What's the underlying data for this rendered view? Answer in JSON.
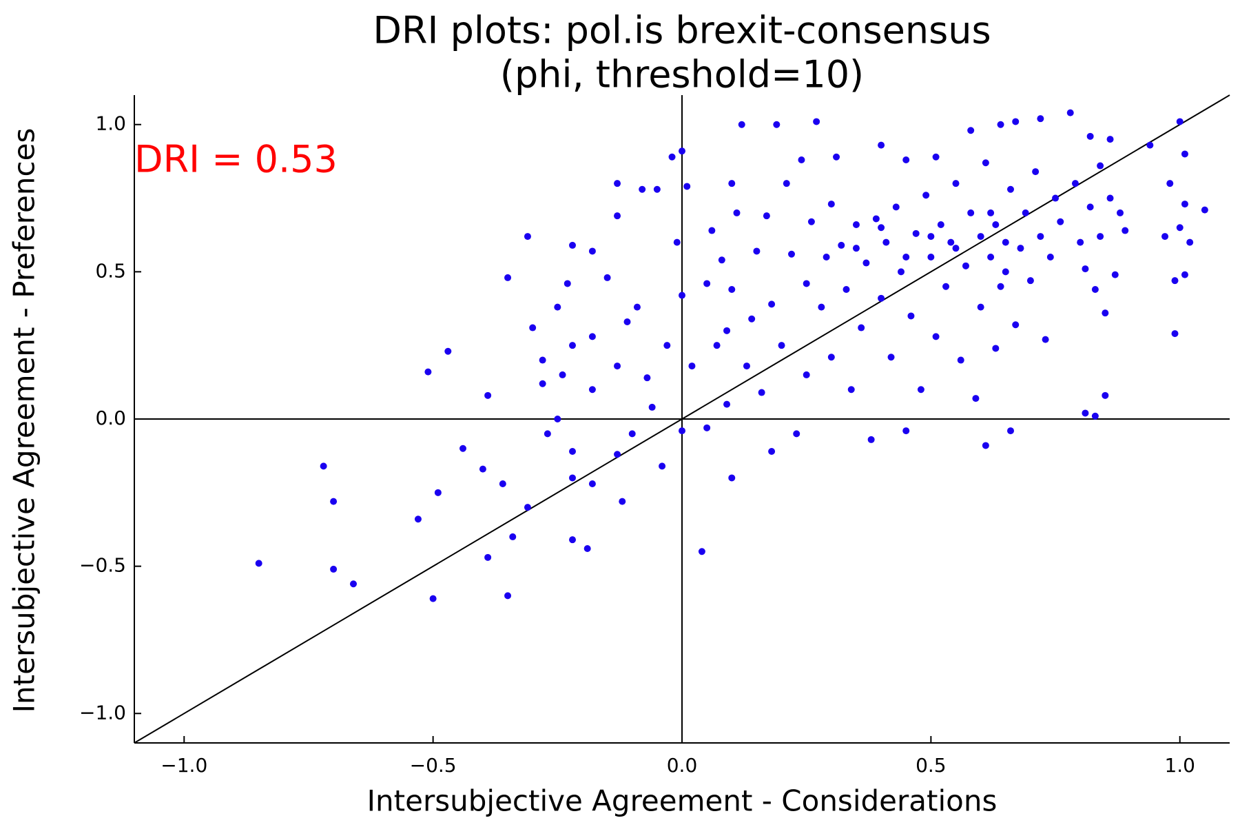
{
  "chart_data": {
    "type": "scatter",
    "title": [
      "DRI plots: pol.is brexit-consensus",
      "(phi, threshold=10)"
    ],
    "x_label": "Intersubjective Agreement - Considerations",
    "y_label": "Intersubjective Agreement - Preferences",
    "annotation": "DRI = 0.53",
    "annotation_color": "#ff0000",
    "color": "#1a00f0",
    "hline": 0,
    "vline": 0,
    "diagonal": true,
    "xlim": [
      -1.1,
      1.1
    ],
    "ylim": [
      -1.1,
      1.1
    ],
    "xticks": [
      {
        "value": -1,
        "label": "−1.0"
      },
      {
        "value": -0.5,
        "label": "−0.5"
      },
      {
        "value": 0,
        "label": "0.0"
      },
      {
        "value": 0.5,
        "label": "0.5"
      },
      {
        "value": 1,
        "label": "1.0"
      }
    ],
    "yticks": [
      {
        "value": -1,
        "label": "−1.0"
      },
      {
        "value": -0.5,
        "label": "−0.5"
      },
      {
        "value": 0,
        "label": "0.0"
      },
      {
        "value": 0.5,
        "label": "0.5"
      },
      {
        "value": 1,
        "label": "1.0"
      }
    ],
    "x": [
      -0.85,
      -0.72,
      -0.7,
      -0.7,
      -0.66,
      -0.53,
      -0.51,
      -0.5,
      -0.47,
      -0.49,
      -0.44,
      -0.4,
      -0.39,
      -0.39,
      -0.36,
      -0.35,
      -0.35,
      -0.34,
      -0.31,
      -0.31,
      -0.3,
      -0.28,
      -0.28,
      -0.27,
      -0.25,
      -0.25,
      -0.24,
      -0.23,
      -0.22,
      -0.22,
      -0.22,
      -0.22,
      -0.22,
      -0.19,
      -0.18,
      -0.18,
      -0.18,
      -0.18,
      -0.15,
      -0.13,
      -0.13,
      -0.13,
      -0.13,
      -0.12,
      -0.11,
      -0.1,
      -0.09,
      -0.08,
      -0.07,
      -0.06,
      -0.05,
      -0.04,
      -0.03,
      -0.02,
      -0.01,
      0.0,
      0.0,
      0.0,
      0.01,
      0.02,
      0.04,
      0.05,
      0.05,
      0.06,
      0.07,
      0.08,
      0.09,
      0.09,
      0.1,
      0.1,
      0.1,
      0.11,
      0.12,
      0.13,
      0.14,
      0.15,
      0.16,
      0.17,
      0.18,
      0.18,
      0.19,
      0.2,
      0.21,
      0.22,
      0.23,
      0.24,
      0.25,
      0.25,
      0.26,
      0.27,
      0.28,
      0.29,
      0.3,
      0.3,
      0.31,
      0.32,
      0.33,
      0.34,
      0.35,
      0.36,
      0.37,
      0.38,
      0.39,
      0.4,
      0.4,
      0.41,
      0.42,
      0.43,
      0.44,
      0.45,
      0.45,
      0.46,
      0.47,
      0.48,
      0.49,
      0.5,
      0.51,
      0.51,
      0.52,
      0.53,
      0.54,
      0.55,
      0.56,
      0.57,
      0.58,
      0.58,
      0.59,
      0.6,
      0.6,
      0.61,
      0.61,
      0.62,
      0.63,
      0.63,
      0.64,
      0.64,
      0.65,
      0.66,
      0.66,
      0.67,
      0.67,
      0.68,
      0.69,
      0.7,
      0.71,
      0.72,
      0.72,
      0.73,
      0.74,
      0.75,
      0.76,
      0.78,
      0.79,
      0.8,
      0.81,
      0.81,
      0.82,
      0.82,
      0.83,
      0.83,
      0.84,
      0.84,
      0.85,
      0.85,
      0.86,
      0.86,
      0.87,
      0.88,
      0.89,
      0.94,
      0.97,
      0.98,
      0.99,
      0.99,
      1.0,
      1.0,
      1.01,
      1.01,
      1.01,
      1.02,
      1.05,
      0.5,
      0.55,
      0.62,
      0.35,
      0.4,
      0.65,
      0.45
    ],
    "y": [
      -0.49,
      -0.16,
      -0.28,
      -0.51,
      -0.56,
      -0.34,
      0.16,
      -0.61,
      0.23,
      -0.25,
      -0.1,
      -0.17,
      0.08,
      -0.47,
      -0.22,
      0.48,
      -0.6,
      -0.4,
      -0.3,
      0.62,
      0.31,
      0.12,
      0.2,
      -0.05,
      0.0,
      0.38,
      0.15,
      0.46,
      -0.11,
      -0.2,
      0.25,
      -0.41,
      0.59,
      -0.44,
      0.1,
      -0.22,
      0.28,
      0.57,
      0.48,
      0.8,
      0.69,
      0.18,
      -0.12,
      -0.28,
      0.33,
      -0.05,
      0.38,
      0.78,
      0.14,
      0.04,
      0.78,
      -0.16,
      0.25,
      0.89,
      0.6,
      0.91,
      0.42,
      -0.04,
      0.79,
      0.18,
      -0.45,
      -0.03,
      0.46,
      0.64,
      0.25,
      0.54,
      0.05,
      0.3,
      -0.2,
      0.8,
      0.44,
      0.7,
      1.0,
      0.18,
      0.34,
      0.57,
      0.09,
      0.69,
      -0.11,
      0.39,
      1.0,
      0.25,
      0.8,
      0.56,
      -0.05,
      0.88,
      0.46,
      0.15,
      0.67,
      1.01,
      0.38,
      0.55,
      0.73,
      0.21,
      0.89,
      0.59,
      0.44,
      0.1,
      0.66,
      0.31,
      0.53,
      -0.07,
      0.68,
      0.93,
      0.41,
      0.6,
      0.21,
      0.72,
      0.5,
      0.88,
      -0.04,
      0.35,
      0.63,
      0.1,
      0.76,
      0.55,
      0.89,
      0.28,
      0.66,
      0.45,
      0.6,
      0.8,
      0.2,
      0.52,
      0.98,
      0.7,
      0.07,
      0.62,
      0.38,
      0.87,
      -0.09,
      0.55,
      0.66,
      0.24,
      1.0,
      0.45,
      0.6,
      0.78,
      -0.04,
      1.01,
      0.32,
      0.58,
      0.7,
      0.47,
      0.84,
      1.02,
      0.62,
      0.27,
      0.55,
      0.75,
      0.67,
      1.04,
      0.8,
      0.6,
      0.02,
      0.51,
      0.72,
      0.96,
      0.44,
      0.01,
      0.86,
      0.62,
      0.08,
      0.36,
      0.75,
      0.95,
      0.49,
      0.7,
      0.64,
      0.93,
      0.62,
      0.8,
      0.29,
      0.47,
      1.01,
      0.65,
      0.9,
      0.73,
      0.49,
      0.6,
      0.71,
      0.62,
      0.58,
      0.7,
      0.58,
      0.65,
      0.5,
      0.55
    ]
  }
}
